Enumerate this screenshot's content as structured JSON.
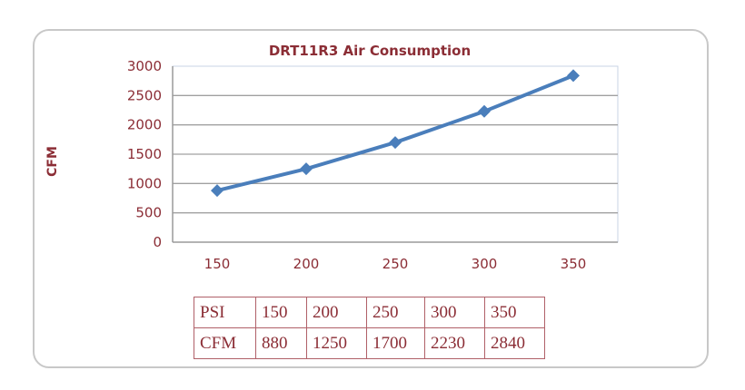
{
  "chart_data": {
    "type": "line",
    "title": "DRT11R3  Air Consumption",
    "xlabel": "",
    "ylabel": "CFM",
    "categories": [
      "150",
      "200",
      "250",
      "300",
      "350"
    ],
    "series": [
      {
        "name": "CFM",
        "values": [
          880,
          1250,
          1700,
          2230,
          2840
        ]
      }
    ],
    "ylim": [
      0,
      3000
    ],
    "yticks": [
      "0",
      "500",
      "1000",
      "1500",
      "2000",
      "2500",
      "3000"
    ],
    "grid": true,
    "legend": "none",
    "colors": {
      "line": "#4a7ebb",
      "text": "#8b2d35",
      "grid": "#a0a0a0"
    }
  },
  "table": {
    "rows": [
      [
        "PSI",
        "150",
        "200",
        "250",
        "300",
        "350"
      ],
      [
        "CFM",
        "880",
        "1250",
        "1700",
        "2230",
        "2840"
      ]
    ]
  }
}
